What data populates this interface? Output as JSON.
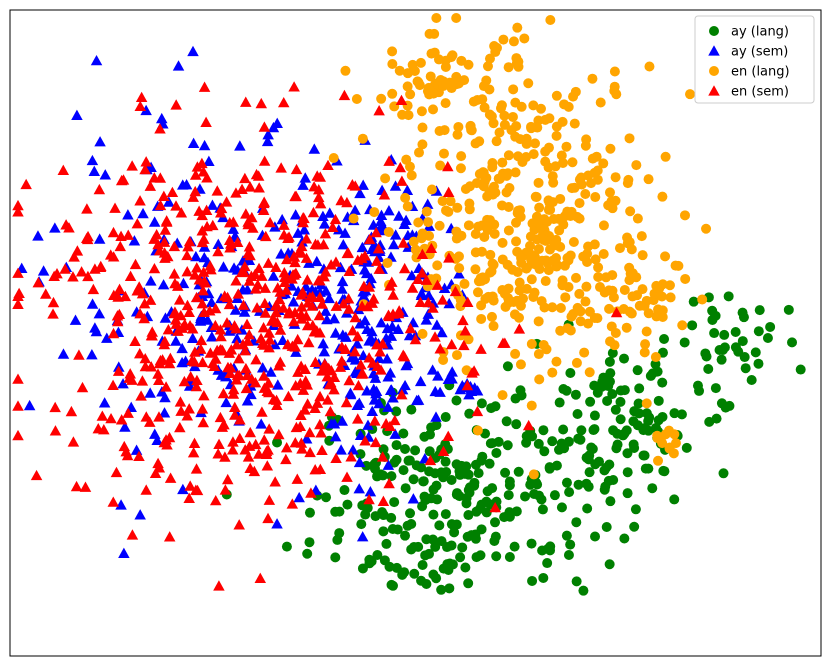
{
  "chart_data": {
    "type": "scatter",
    "title": "",
    "xlabel": "",
    "ylabel": "",
    "xlim": [
      0,
      100
    ],
    "ylim": [
      0,
      100
    ],
    "grid": false,
    "ticks": false,
    "legend_position": "top-right",
    "series": [
      {
        "name": "ay (lang)",
        "marker": "circle",
        "color": "#008000",
        "clusters": [
          {
            "cx": 56,
            "cy": 26,
            "sx": 9.0,
            "sy": 7.5,
            "n": 240
          },
          {
            "cx": 75,
            "cy": 35,
            "sx": 5.0,
            "sy": 6.0,
            "n": 110
          },
          {
            "cx": 50,
            "cy": 15,
            "sx": 4.0,
            "sy": 4.0,
            "n": 25
          },
          {
            "cx": 88,
            "cy": 49,
            "sx": 3.5,
            "sy": 4.0,
            "n": 40
          },
          {
            "cx": 36,
            "cy": 17,
            "sx": 1.5,
            "sy": 1.0,
            "n": 4
          }
        ]
      },
      {
        "name": "ay (sem)",
        "marker": "triangle",
        "color": "#0000ff",
        "clusters": [
          {
            "cx": 27,
            "cy": 55,
            "sx": 11.0,
            "sy": 13.0,
            "n": 230
          },
          {
            "cx": 45,
            "cy": 45,
            "sx": 4.5,
            "sy": 8.0,
            "n": 110
          },
          {
            "cx": 47,
            "cy": 65,
            "sx": 3.5,
            "sy": 4.0,
            "n": 45
          },
          {
            "cx": 56,
            "cy": 42,
            "sx": 1.5,
            "sy": 0.6,
            "n": 12
          }
        ]
      },
      {
        "name": "en (lang)",
        "marker": "circle",
        "color": "#ffa500",
        "clusters": [
          {
            "cx": 64,
            "cy": 67,
            "sx": 8.0,
            "sy": 11.5,
            "n": 390
          },
          {
            "cx": 54,
            "cy": 88,
            "sx": 5.0,
            "sy": 4.0,
            "n": 80
          },
          {
            "cx": 76,
            "cy": 55,
            "sx": 6.0,
            "sy": 4.0,
            "n": 60
          },
          {
            "cx": 81,
            "cy": 33,
            "sx": 1.0,
            "sy": 2.0,
            "n": 12
          }
        ]
      },
      {
        "name": "en (sem)",
        "marker": "triangle",
        "color": "#ff0000",
        "clusters": [
          {
            "cx": 30,
            "cy": 52,
            "sx": 12.5,
            "sy": 14.0,
            "n": 620
          },
          {
            "cx": 8,
            "cy": 60,
            "sx": 2.5,
            "sy": 3.0,
            "n": 8
          }
        ]
      }
    ]
  }
}
